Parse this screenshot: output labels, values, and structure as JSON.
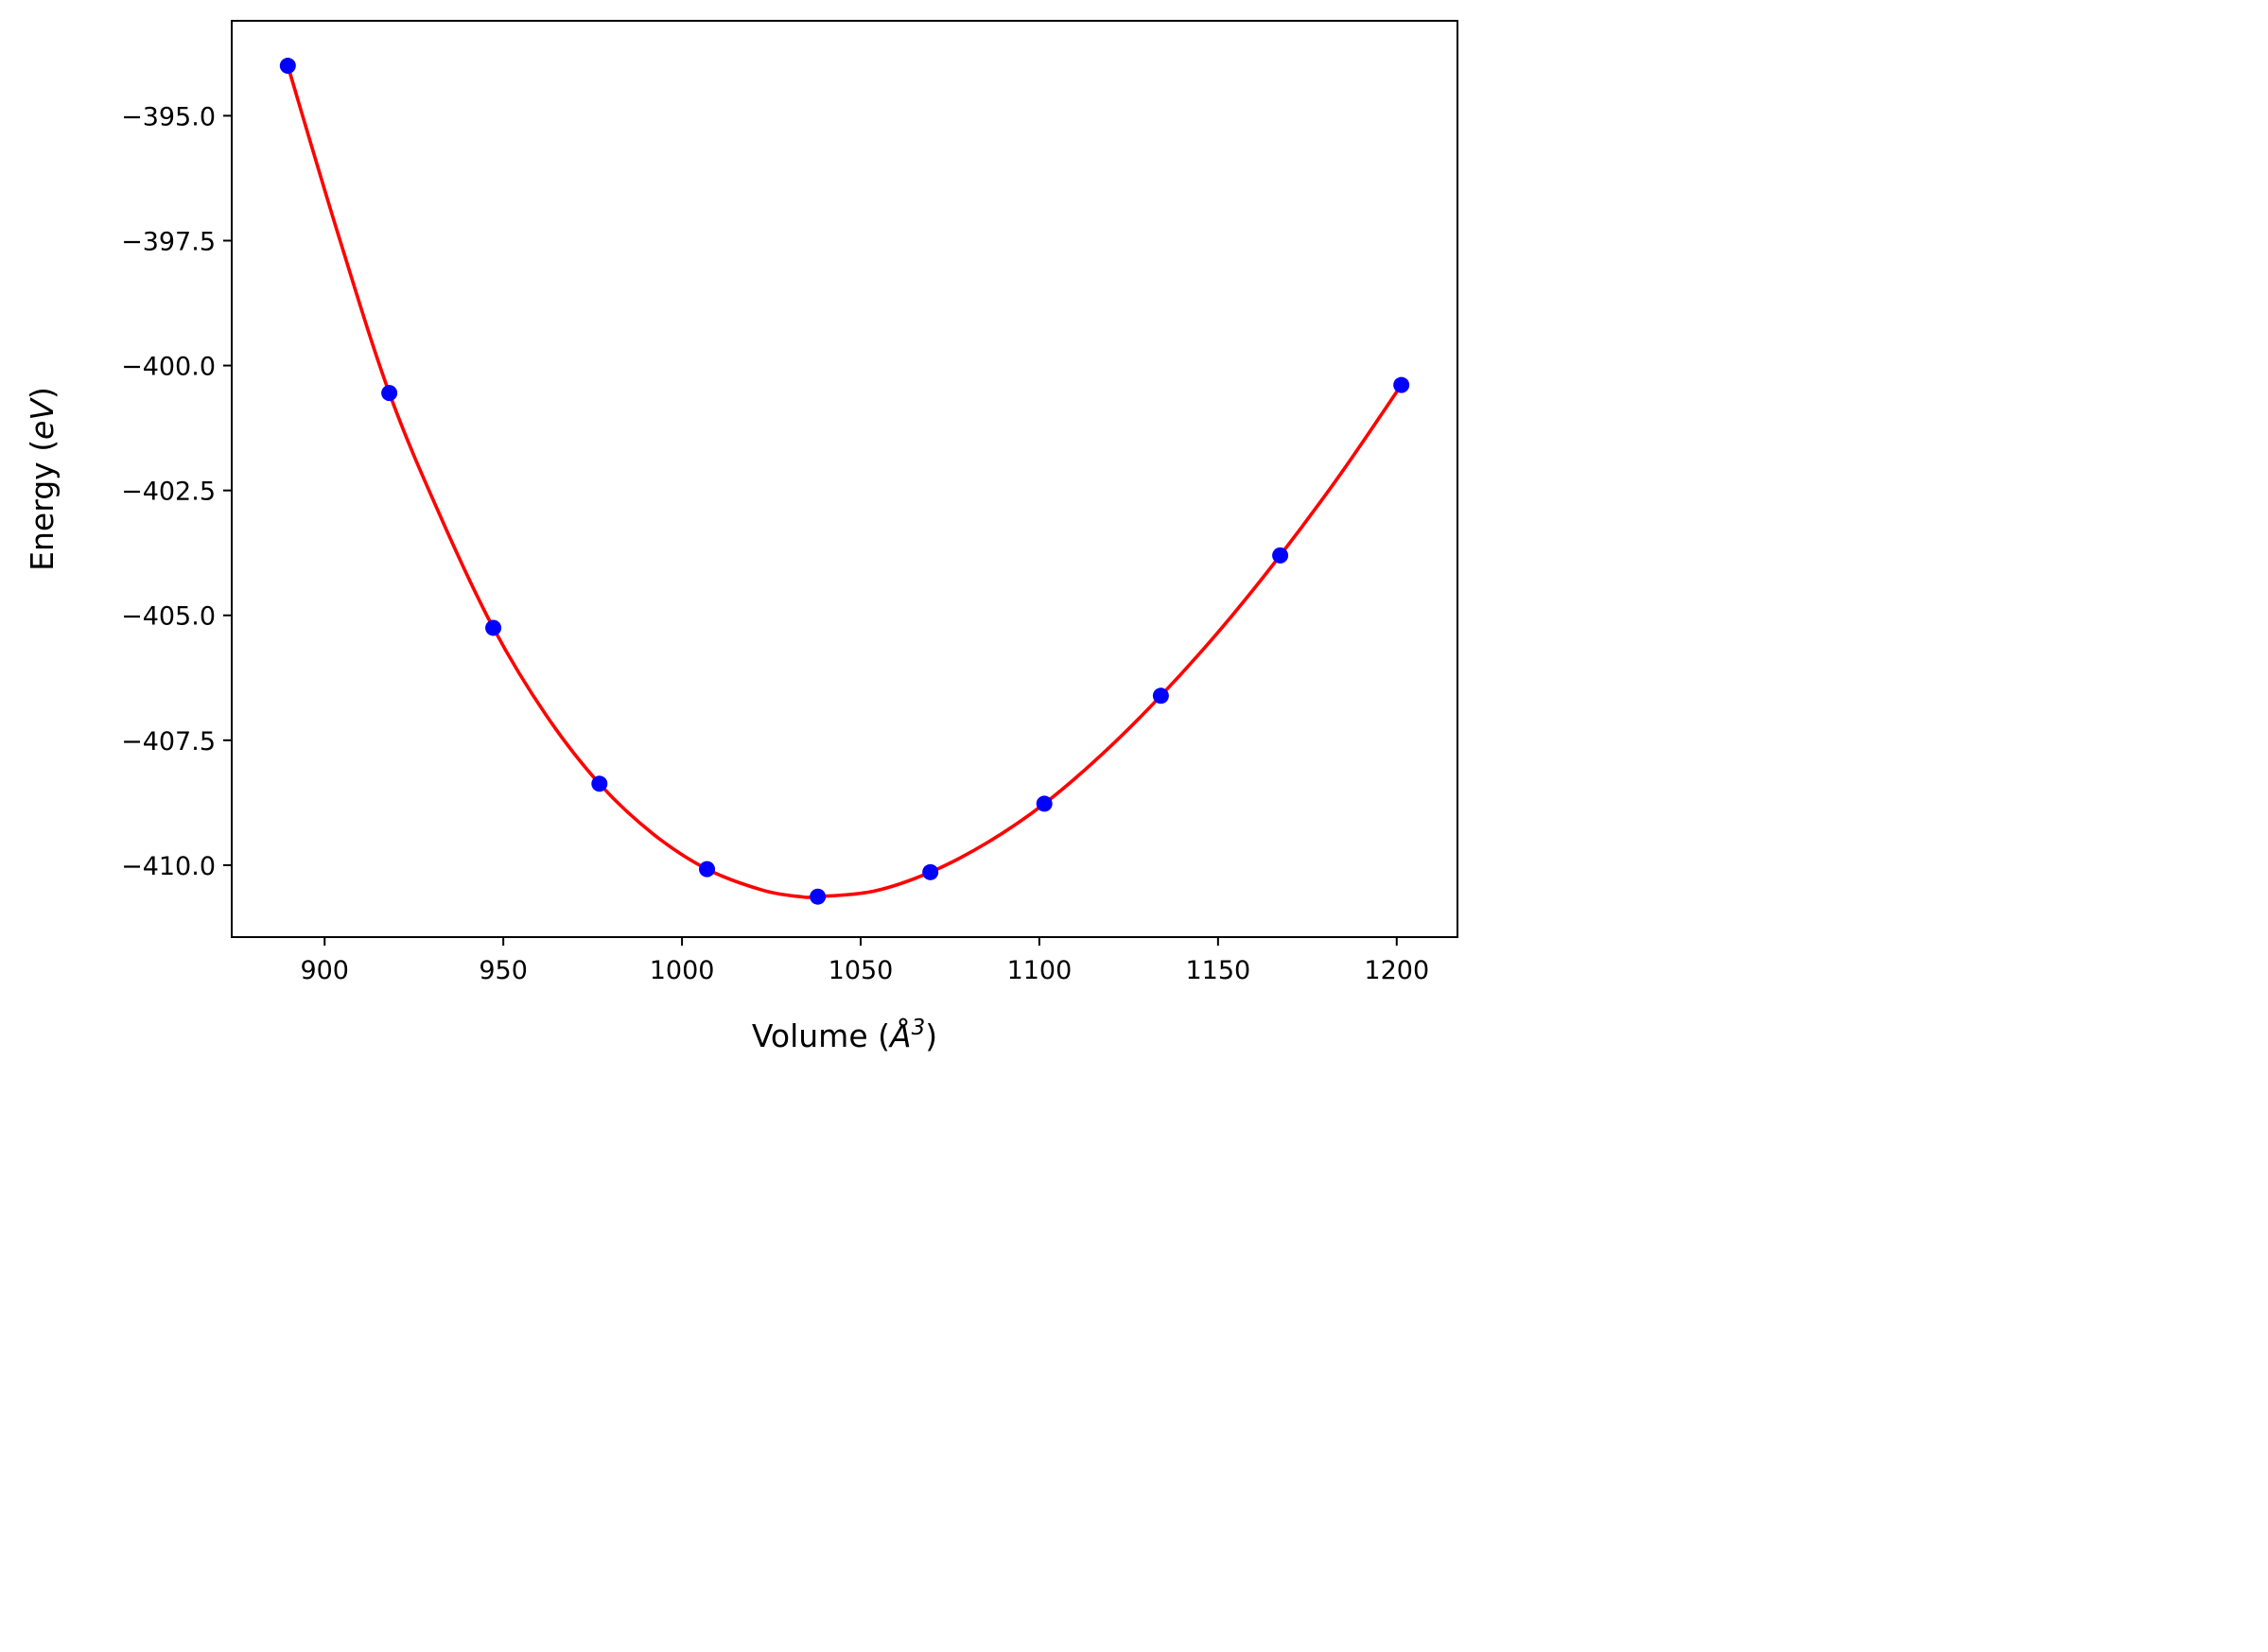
{
  "chart_data": {
    "type": "scatter",
    "title": "",
    "xlabel": "Volume (Å³)",
    "xlabel_parts": {
      "prefix": "Volume (",
      "symbol": "Å",
      "power": "3",
      "suffix": ")"
    },
    "ylabel": "Energy (eV)",
    "ylabel_parts": {
      "prefix": "Energy (",
      "unit": "eV",
      "suffix": ")"
    },
    "xlim": [
      874,
      1217
    ],
    "ylim": [
      -411.44,
      -393.1
    ],
    "xticks": [
      900,
      950,
      1000,
      1050,
      1100,
      1150,
      1200
    ],
    "xtick_labels": [
      "900",
      "950",
      "1000",
      "1050",
      "1100",
      "1150",
      "1200"
    ],
    "yticks": [
      -395.0,
      -397.5,
      -400.0,
      -402.5,
      -405.0,
      -407.5,
      -410.0
    ],
    "ytick_labels": [
      "−395.0",
      "−397.5",
      "−400.0",
      "−402.5",
      "−405.0",
      "−407.5",
      "−410.0"
    ],
    "grid": false,
    "legend": "none",
    "series": [
      {
        "kind": "points",
        "color": "#0000ff",
        "marker": "circle",
        "x": [
          889.7,
          918.1,
          947.2,
          976.9,
          1007.0,
          1038.0,
          1069.5,
          1101.4,
          1134.0,
          1167.4,
          1201.3
        ],
        "y": [
          -394.0,
          -400.55,
          -405.25,
          -408.37,
          -410.08,
          -410.63,
          -410.14,
          -408.77,
          -406.61,
          -403.8,
          -400.39
        ]
      },
      {
        "kind": "fit-curve",
        "color": "#ff0000",
        "x": [
          889.7,
          903.9,
          918.1,
          932.6,
          947.2,
          962.0,
          976.9,
          992.0,
          1007.0,
          1022.5,
          1033.0,
          1038.0,
          1053.7,
          1069.5,
          1085.4,
          1101.4,
          1117.7,
          1134.0,
          1150.7,
          1167.4,
          1184.3,
          1201.3
        ],
        "y": [
          -394.0,
          -397.4,
          -400.55,
          -403.05,
          -405.25,
          -407.0,
          -408.37,
          -409.38,
          -410.08,
          -410.5,
          -410.63,
          -410.63,
          -410.52,
          -410.14,
          -409.55,
          -408.77,
          -407.77,
          -406.61,
          -405.28,
          -403.8,
          -402.17,
          -400.39
        ]
      }
    ]
  }
}
